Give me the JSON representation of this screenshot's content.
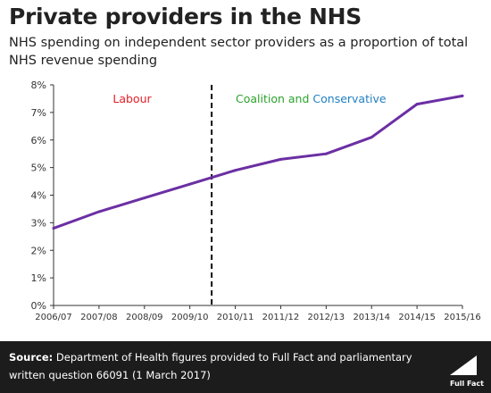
{
  "title": "Private providers in the NHS",
  "subtitle": "NHS spending on independent sector providers as a proportion of total NHS revenue spending",
  "footer": {
    "source_label": "Source:",
    "source_text": " Department of Health figures provided to Full Fact and parliamentary written question 66091 (1 March 2017)",
    "logo_text": "Full Fact"
  },
  "chart_data": {
    "type": "line",
    "x": [
      "2006/07",
      "2007/08",
      "2008/09",
      "2009/10",
      "2010/11",
      "2011/12",
      "2012/13",
      "2013/14",
      "2014/15",
      "2015/16"
    ],
    "series": [
      {
        "values": [
          2.8,
          3.4,
          3.9,
          4.4,
          4.9,
          5.3,
          5.5,
          6.1,
          7.3,
          7.6
        ]
      }
    ],
    "y_ticks": [
      "0%",
      "1%",
      "2%",
      "3%",
      "4%",
      "5%",
      "6%",
      "7%",
      "8%"
    ],
    "ylim": [
      0,
      8
    ],
    "ylabel": "",
    "xlabel": "",
    "grid": false,
    "divider": {
      "x": 3.5,
      "style": "dashed"
    },
    "annotations": [
      {
        "text": "Labour",
        "color": "#e3202a"
      },
      {
        "text": "Coalition and",
        "color": "#2ba32d"
      },
      {
        "text": "Conservative",
        "color": "#1f7fc3"
      }
    ],
    "colors": {
      "line": "#6b2fa3",
      "axis": "#333333"
    }
  }
}
